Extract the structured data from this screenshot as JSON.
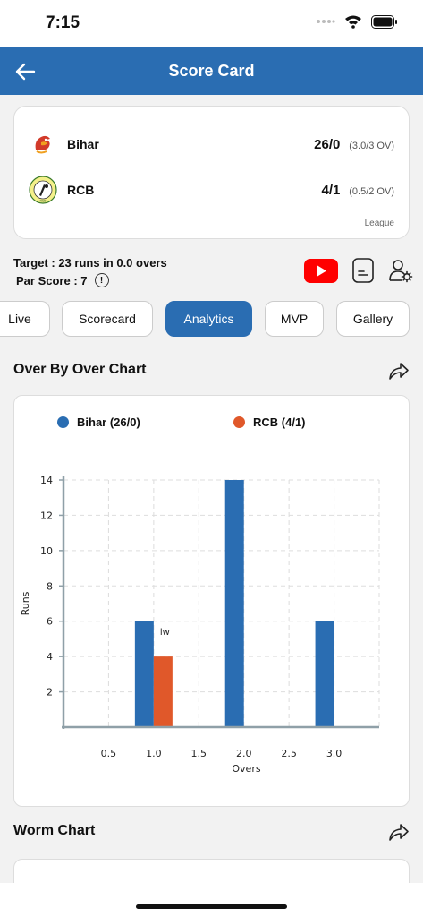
{
  "status": {
    "time": "7:15"
  },
  "header": {
    "title": "Score Card"
  },
  "match": {
    "teams": [
      {
        "name": "Bihar",
        "runs": "26/0",
        "overs": "(3.0/3 OV)",
        "logo": "dragon-logo"
      },
      {
        "name": "RCB",
        "runs": "4/1",
        "overs": "(0.5/2 OV)",
        "logo": "cricket-logo",
        "logo_text": "RCB"
      }
    ],
    "type": "League"
  },
  "target_text": "Target : 23 runs in 0.0 overs",
  "par_text": "Par Score : 7",
  "info_glyph": "!",
  "tabs": [
    "Live",
    "Scorecard",
    "Analytics",
    "MVP",
    "Gallery"
  ],
  "active_tab": "Analytics",
  "sections": {
    "over_chart_title": "Over By Over Chart",
    "worm_chart_title": "Worm Chart"
  },
  "colors": {
    "primary": "#2a6db2",
    "team1": "#2a6db2",
    "team2": "#e0582a",
    "youtube": "#ff0000"
  },
  "chart_data": {
    "type": "bar",
    "x": [
      1.0,
      2.0,
      3.0
    ],
    "series": [
      {
        "name": "Bihar (26/0)",
        "color": "#2a6db2",
        "values": [
          6,
          14,
          6
        ]
      },
      {
        "name": "RCB (4/1)",
        "color": "#e0582a",
        "values": [
          4,
          null,
          null
        ]
      }
    ],
    "annotations": [
      {
        "series": 1,
        "x": 1.0,
        "text": "lw"
      }
    ],
    "xlabel": "Overs",
    "ylabel": "Runs",
    "xticks": [
      "0.5",
      "1.0",
      "1.5",
      "2.0",
      "2.5",
      "3.0"
    ],
    "yticks": [
      "2",
      "4",
      "6",
      "8",
      "10",
      "12",
      "14"
    ],
    "xlim": [
      0,
      3.5
    ],
    "ylim": [
      0,
      14
    ],
    "grid": true
  }
}
